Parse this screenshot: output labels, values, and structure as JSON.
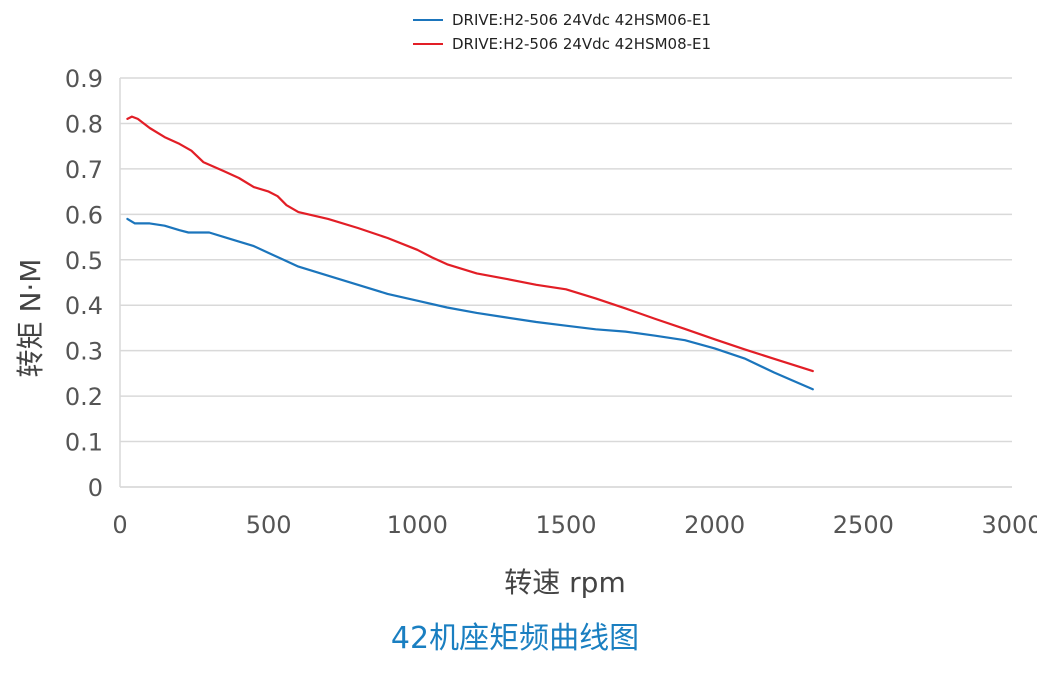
{
  "chart_data": {
    "type": "line",
    "caption": "42机座矩频曲线图",
    "xlabel": "转速 rpm",
    "ylabel": "转矩 N·M",
    "xlim": [
      0,
      3000
    ],
    "ylim": [
      0,
      0.9
    ],
    "x_ticks": [
      0,
      500,
      1000,
      1500,
      2000,
      2500,
      3000
    ],
    "y_ticks": [
      0,
      0.1,
      0.2,
      0.3,
      0.4,
      0.5,
      0.6,
      0.7,
      0.8,
      0.9
    ],
    "x_tick_labels": [
      "0",
      "500",
      "1000",
      "1500",
      "2000",
      "2500",
      "3000"
    ],
    "y_tick_labels": [
      "0",
      "0.1",
      "0.2",
      "0.3",
      "0.4",
      "0.5",
      "0.6",
      "0.7",
      "0.8",
      "0.9"
    ],
    "grid": "horizontal",
    "legend_position": "top-center",
    "series": [
      {
        "name": "DRIVE:H2-506 24Vdc 42HSM06-E1",
        "color": "#1b75bc",
        "points": [
          [
            25,
            0.59
          ],
          [
            50,
            0.58
          ],
          [
            80,
            0.58
          ],
          [
            100,
            0.58
          ],
          [
            150,
            0.575
          ],
          [
            200,
            0.565
          ],
          [
            230,
            0.56
          ],
          [
            300,
            0.56
          ],
          [
            350,
            0.55
          ],
          [
            400,
            0.54
          ],
          [
            450,
            0.53
          ],
          [
            500,
            0.515
          ],
          [
            550,
            0.5
          ],
          [
            600,
            0.485
          ],
          [
            700,
            0.465
          ],
          [
            800,
            0.445
          ],
          [
            900,
            0.425
          ],
          [
            1000,
            0.41
          ],
          [
            1100,
            0.395
          ],
          [
            1200,
            0.383
          ],
          [
            1300,
            0.373
          ],
          [
            1400,
            0.363
          ],
          [
            1500,
            0.355
          ],
          [
            1600,
            0.347
          ],
          [
            1700,
            0.342
          ],
          [
            1800,
            0.333
          ],
          [
            1900,
            0.323
          ],
          [
            2000,
            0.305
          ],
          [
            2100,
            0.283
          ],
          [
            2200,
            0.252
          ],
          [
            2330,
            0.215
          ]
        ]
      },
      {
        "name": "DRIVE:H2-506 24Vdc 42HSM08-E1",
        "color": "#e21e26",
        "points": [
          [
            25,
            0.81
          ],
          [
            40,
            0.815
          ],
          [
            60,
            0.81
          ],
          [
            100,
            0.79
          ],
          [
            150,
            0.77
          ],
          [
            200,
            0.755
          ],
          [
            240,
            0.74
          ],
          [
            280,
            0.715
          ],
          [
            350,
            0.695
          ],
          [
            400,
            0.68
          ],
          [
            450,
            0.66
          ],
          [
            500,
            0.65
          ],
          [
            530,
            0.64
          ],
          [
            560,
            0.62
          ],
          [
            600,
            0.605
          ],
          [
            700,
            0.59
          ],
          [
            800,
            0.57
          ],
          [
            900,
            0.548
          ],
          [
            1000,
            0.522
          ],
          [
            1050,
            0.505
          ],
          [
            1100,
            0.49
          ],
          [
            1200,
            0.47
          ],
          [
            1300,
            0.458
          ],
          [
            1400,
            0.445
          ],
          [
            1500,
            0.435
          ],
          [
            1600,
            0.415
          ],
          [
            1700,
            0.393
          ],
          [
            1800,
            0.37
          ],
          [
            1900,
            0.348
          ],
          [
            2000,
            0.325
          ],
          [
            2100,
            0.303
          ],
          [
            2200,
            0.282
          ],
          [
            2330,
            0.255
          ]
        ]
      }
    ]
  }
}
